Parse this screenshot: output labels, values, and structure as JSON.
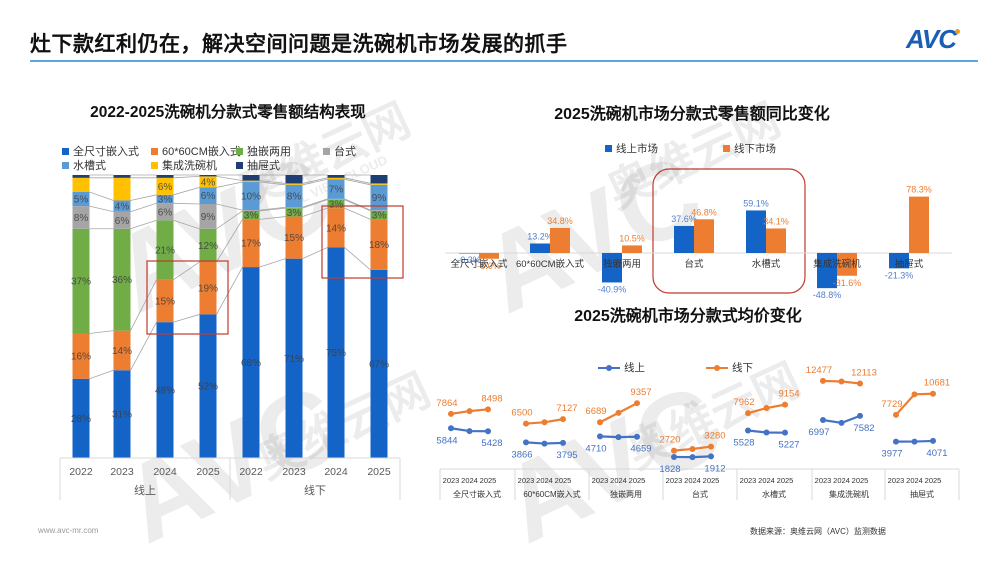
{
  "header": {
    "title": "灶下款红利仍在，解决空间问题是洗碗机市场发展的抓手",
    "logo": "AVC"
  },
  "watermark": {
    "logo": "AVC",
    "brand_cn": "奥维云网",
    "brand_en": "ALL VIEW CLOUD"
  },
  "footer": {
    "website": "www.avc-mr.com",
    "source": "数据来源：奥维云网（AVC）监测数据"
  },
  "chart_data": [
    {
      "type": "bar",
      "stacked": true,
      "title": "2022-2025洗碗机分款式零售额结构表现",
      "xlabel": "",
      "ylabel": "",
      "unit": "%",
      "ylim": [
        0,
        100
      ],
      "groups": [
        {
          "name": "线上",
          "categories": [
            "2022",
            "2023",
            "2024",
            "2025"
          ]
        },
        {
          "name": "线下",
          "categories": [
            "2022",
            "2023",
            "2024",
            "2025"
          ]
        }
      ],
      "x": [
        "2022",
        "2023",
        "2024",
        "2025",
        "2022",
        "2023",
        "2024",
        "2025"
      ],
      "legend_position": "top",
      "series": [
        {
          "name": "全尺寸嵌入式",
          "color": "#1464C8",
          "values": [
            28,
            31,
            48,
            52,
            68,
            71,
            75,
            67
          ],
          "labels": [
            "28%",
            "31%",
            "48%",
            "52%",
            "68%",
            "71%",
            "75%",
            "67%"
          ]
        },
        {
          "name": "60*60CM嵌入式",
          "color": "#ED7D31",
          "values": [
            16,
            14,
            15,
            19,
            17,
            15,
            14,
            18
          ],
          "labels": [
            "16%",
            "14%",
            "15%",
            "19%",
            "17%",
            "15%",
            "14%",
            "18%"
          ]
        },
        {
          "name": "独嵌两用",
          "color": "#70AD47",
          "values": [
            37,
            36,
            21,
            12,
            3,
            3,
            3,
            3
          ],
          "labels": [
            "37%",
            "36%",
            "21%",
            "12%",
            "3%",
            "3%",
            "3%",
            "3%"
          ]
        },
        {
          "name": "台式",
          "color": "#A5A5A5",
          "values": [
            8,
            6,
            6,
            9,
            0.3,
            0.3,
            0.3,
            0.3
          ],
          "labels": [
            "8%",
            "6%",
            "6%",
            "9%",
            "",
            "",
            "",
            ""
          ]
        },
        {
          "name": "水槽式",
          "color": "#5B9BD5",
          "values": [
            5,
            4,
            3,
            6,
            10,
            8,
            7,
            9
          ],
          "labels": [
            "5%",
            "4%",
            "3%",
            "6%",
            "10%",
            "8%",
            "7%",
            "9%"
          ]
        },
        {
          "name": "集成洗碗机",
          "color": "#FFC000",
          "values": [
            5,
            8,
            6,
            4,
            0.5,
            0.5,
            0.5,
            0.5
          ],
          "labels": [
            "",
            "",
            "6%",
            "4%",
            "",
            "",
            "",
            ""
          ]
        },
        {
          "name": "抽屉式",
          "color": "#1F3E73",
          "values": [
            1,
            1,
            1,
            0.5,
            2,
            3,
            1,
            3
          ],
          "labels": [
            "",
            "",
            "",
            "",
            "",
            "",
            "",
            ""
          ]
        }
      ],
      "annotations": [
        {
          "type": "highlight-box",
          "group": "线上",
          "years": [
            "2024",
            "2025"
          ],
          "series": "60*60CM嵌入式"
        },
        {
          "type": "highlight-box",
          "group": "线下",
          "years": [
            "2024",
            "2025"
          ],
          "series": "60*60CM嵌入式"
        }
      ]
    },
    {
      "type": "bar",
      "title": "2025洗碗机市场分款式零售额同比变化",
      "xlabel": "",
      "ylabel": "",
      "unit": "%",
      "categories": [
        "全尺寸嵌入式",
        "60*60CM嵌入式",
        "独嵌两用",
        "台式",
        "水槽式",
        "集成洗碗机",
        "抽屉式"
      ],
      "legend_position": "top",
      "series": [
        {
          "name": "线上市场",
          "color": "#1464C8",
          "label_color": "#4F7FCF",
          "values": [
            -0.3,
            13.2,
            -40.9,
            37.6,
            59.1,
            -48.8,
            -21.3
          ]
        },
        {
          "name": "线下市场",
          "color": "#ED7D31",
          "label_color": "#ED7D31",
          "values": [
            -8.0,
            34.8,
            10.5,
            46.8,
            34.1,
            -31.6,
            78.3
          ]
        }
      ],
      "annotations": [
        {
          "type": "highlight-rounded-box",
          "categories": [
            "台式",
            "水槽式"
          ]
        }
      ]
    },
    {
      "type": "line",
      "title": "2025洗碗机市场分款式均价变化",
      "xlabel": "",
      "ylabel": "",
      "unit": "元",
      "x": [
        "2023",
        "2024",
        "2025"
      ],
      "categories": [
        "全尺寸嵌入式",
        "60*60CM嵌入式",
        "独嵌两用",
        "台式",
        "水槽式",
        "集成洗碗机",
        "抽屉式"
      ],
      "legend_position": "top",
      "labeled_points": [
        0,
        2
      ],
      "series": [
        {
          "name": "线上",
          "color": "#4472C4",
          "values": [
            [
              5844,
              5450,
              5428
            ],
            [
              3866,
              3700,
              3795
            ],
            [
              4710,
              4600,
              4659
            ],
            [
              1828,
              1800,
              1912
            ],
            [
              5528,
              5250,
              5227
            ],
            [
              6997,
              6600,
              7582
            ],
            [
              3977,
              3980,
              4071
            ]
          ]
        },
        {
          "name": "线下",
          "color": "#ED7D31",
          "values": [
            [
              7864,
              8250,
              8498
            ],
            [
              6500,
              6680,
              7127
            ],
            [
              6689,
              8000,
              9357
            ],
            [
              2720,
              2940,
              3280
            ],
            [
              7962,
              8680,
              9154
            ],
            [
              12477,
              12400,
              12113
            ],
            [
              7729,
              10600,
              10681
            ]
          ]
        }
      ]
    }
  ]
}
